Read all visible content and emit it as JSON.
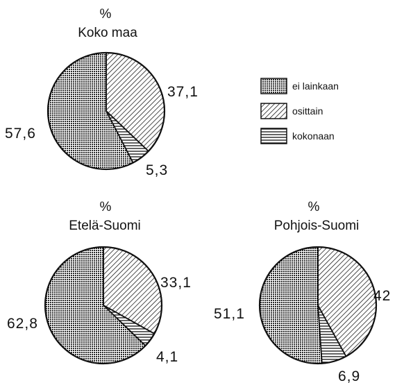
{
  "chart_data": [
    {
      "type": "pie",
      "unit": "%",
      "title": "Koko maa",
      "slices": [
        {
          "label": "ei lainkaan",
          "value": 57.6,
          "value_text": "57,6",
          "pattern": "crosshatch"
        },
        {
          "label": "osittain",
          "value": 37.1,
          "value_text": "37,1",
          "pattern": "diagonal"
        },
        {
          "label": "kokonaan",
          "value": 5.3,
          "value_text": "5,3",
          "pattern": "horizontal"
        }
      ]
    },
    {
      "type": "pie",
      "unit": "%",
      "title": "Etelä-Suomi",
      "slices": [
        {
          "label": "ei lainkaan",
          "value": 62.8,
          "value_text": "62,8",
          "pattern": "crosshatch"
        },
        {
          "label": "osittain",
          "value": 33.1,
          "value_text": "33,1",
          "pattern": "diagonal"
        },
        {
          "label": "kokonaan",
          "value": 4.1,
          "value_text": "4,1",
          "pattern": "horizontal"
        }
      ]
    },
    {
      "type": "pie",
      "unit": "%",
      "title": "Pohjois-Suomi",
      "slices": [
        {
          "label": "ei lainkaan",
          "value": 51.1,
          "value_text": "51,1",
          "pattern": "crosshatch"
        },
        {
          "label": "osittain",
          "value": 42,
          "value_text": "42",
          "pattern": "diagonal"
        },
        {
          "label": "kokonaan",
          "value": 6.9,
          "value_text": "6,9",
          "pattern": "horizontal"
        }
      ]
    }
  ],
  "legend": [
    {
      "label": "ei lainkaan",
      "pattern": "crosshatch"
    },
    {
      "label": "osittain",
      "pattern": "diagonal"
    },
    {
      "label": "kokonaan",
      "pattern": "horizontal"
    }
  ],
  "legend_placement": "right of top chart",
  "colors": {
    "ink": "#111111",
    "background": "#ffffff"
  }
}
